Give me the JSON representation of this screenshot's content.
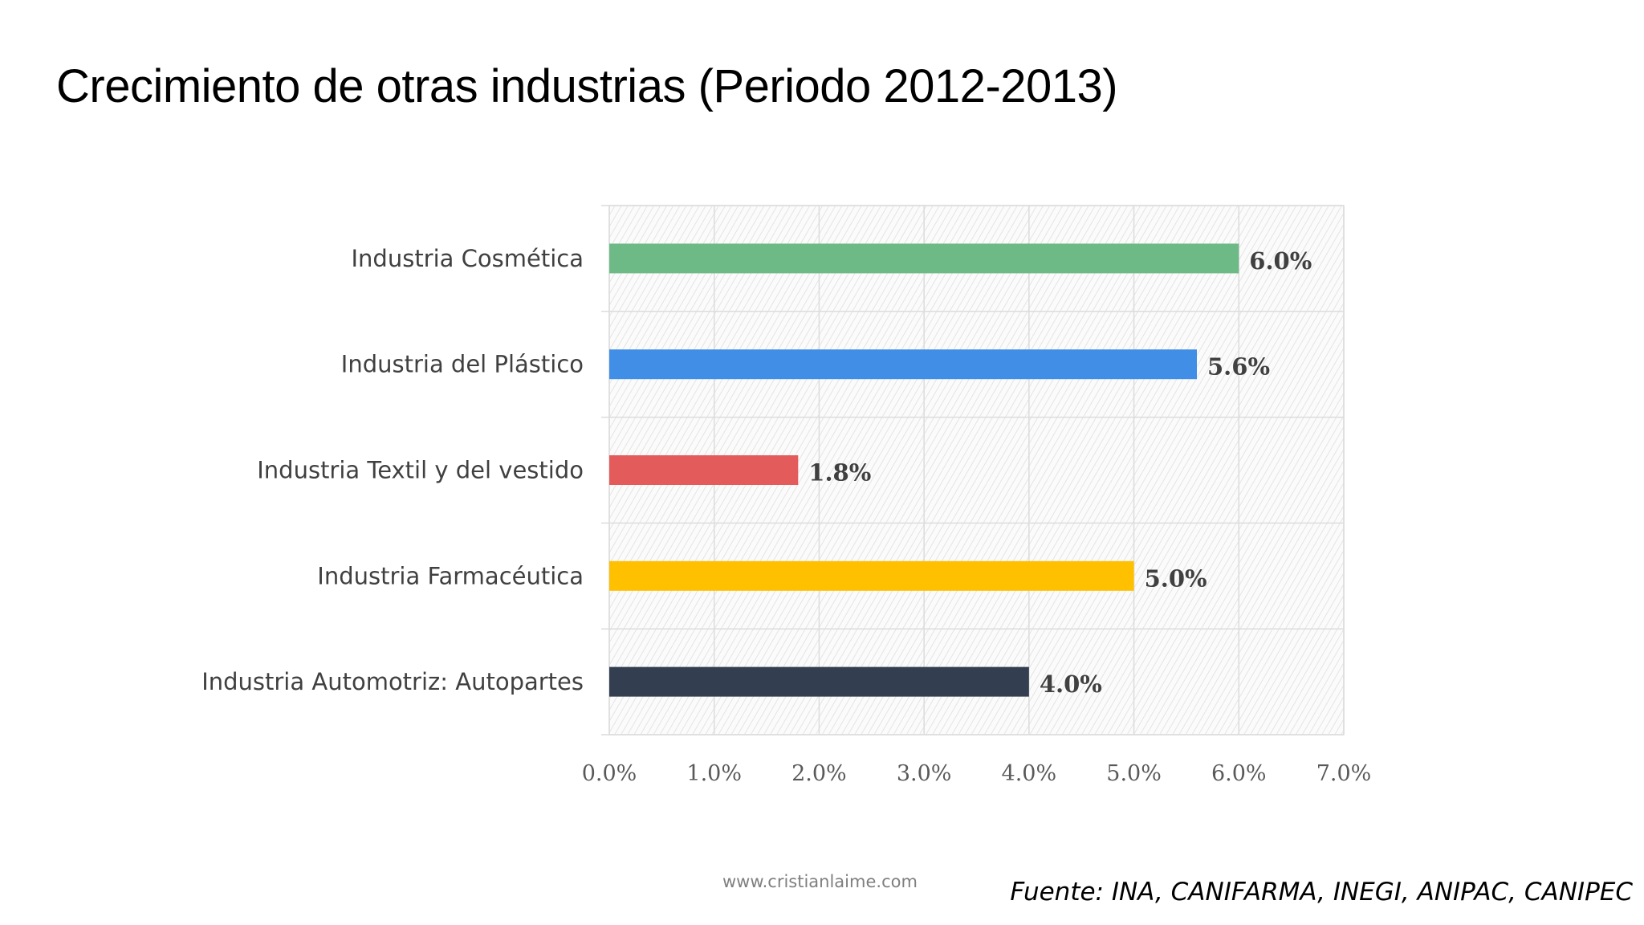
{
  "slide": {
    "title": "Crecimiento de otras industrias (Periodo 2012-2013)",
    "website": "www.cristianlaime.com",
    "source": "Fuente: INA, CANIFARMA, INEGI, ANIPAC, CANIPEC"
  },
  "chart_data": {
    "type": "bar",
    "orientation": "horizontal",
    "categories": [
      "Industria Cosmética",
      "Industria del Plástico",
      "Industria Textil y del vestido",
      "Industria Farmacéutica",
      "Industria Automotriz: Autopartes"
    ],
    "values": [
      6.0,
      5.6,
      1.8,
      5.0,
      4.0
    ],
    "value_labels": [
      "6.0%",
      "5.6%",
      "1.8%",
      "5.0%",
      "4.0%"
    ],
    "colors": [
      "#6dba87",
      "#408ee6",
      "#e35b5b",
      "#ffc000",
      "#333f50"
    ],
    "xlim": [
      0,
      7
    ],
    "xticks": [
      0,
      1,
      2,
      3,
      4,
      5,
      6,
      7
    ],
    "xtick_labels": [
      "0.0%",
      "1.0%",
      "2.0%",
      "3.0%",
      "4.0%",
      "5.0%",
      "6.0%",
      "7.0%"
    ],
    "grid": true,
    "legend": "none",
    "plot_background": "hatched light gray"
  }
}
